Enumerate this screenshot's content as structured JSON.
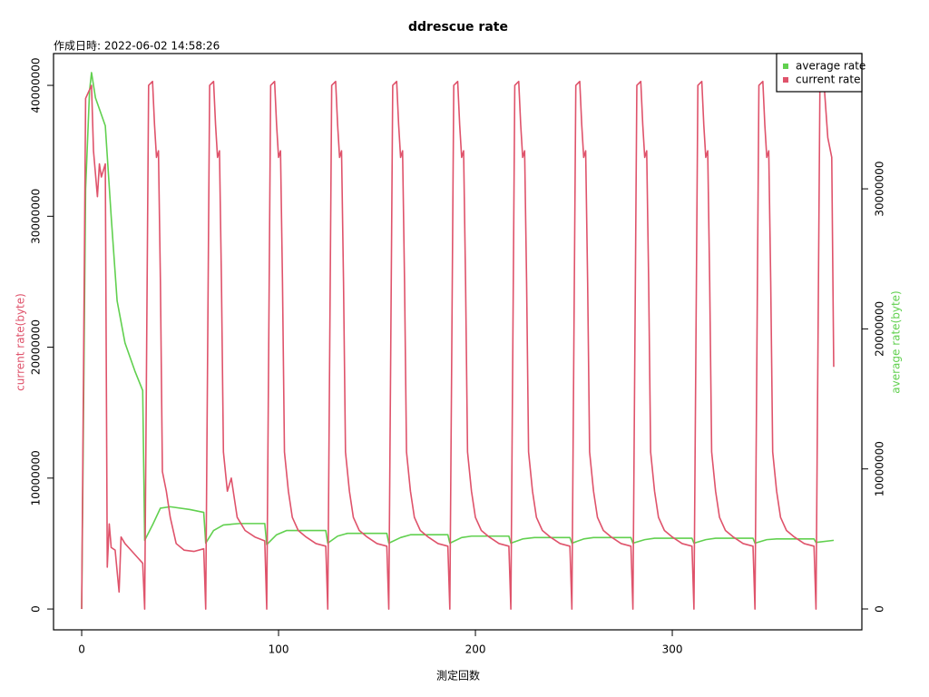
{
  "chart_data": {
    "type": "line",
    "title": "ddrescue rate",
    "subtitle": "作成日時: 2022-06-02 14:58:26",
    "x_label": "測定回数",
    "y_label": "current rate(byte)",
    "y2_label": "average rate(byte)",
    "xlim": [
      -14.3,
      396.3
    ],
    "xticks": [
      0,
      100,
      200,
      300
    ],
    "ylim": [
      -1590000,
      42430000
    ],
    "yticks": [
      0,
      10000000,
      20000000,
      30000000,
      40000000
    ],
    "y2lim": [
      -1490000,
      39660000
    ],
    "y2ticks": [
      0,
      10000000,
      20000000,
      30000000
    ],
    "legend": "top-right",
    "series": [
      {
        "name": "average rate",
        "color": "#61D04F",
        "axis": "y2",
        "x": [
          0,
          2,
          4,
          5,
          7,
          12,
          15,
          18,
          22,
          27,
          31,
          32,
          36,
          40,
          45,
          55,
          62,
          63,
          67,
          72,
          80,
          93,
          94,
          99,
          104,
          124,
          125,
          130,
          135,
          155,
          156,
          162,
          167,
          186,
          187,
          193,
          198,
          217,
          218,
          224,
          230,
          248,
          249,
          255,
          260,
          279,
          280,
          286,
          291,
          310,
          311,
          317,
          322,
          341,
          342,
          348,
          353,
          372,
          373,
          382
        ],
        "values": [
          0,
          30000000,
          37000000,
          38300000,
          36500000,
          34500000,
          28000000,
          22000000,
          19000000,
          17000000,
          15600000,
          4900000,
          6000000,
          7200000,
          7300000,
          7100000,
          6900000,
          4700000,
          5600000,
          6000000,
          6100000,
          6100000,
          4600000,
          5300000,
          5600000,
          5600000,
          4700000,
          5200000,
          5400000,
          5400000,
          4700000,
          5100000,
          5300000,
          5300000,
          4700000,
          5100000,
          5200000,
          5200000,
          4700000,
          5000000,
          5100000,
          5100000,
          4700000,
          5000000,
          5100000,
          5100000,
          4700000,
          4950000,
          5050000,
          5050000,
          4700000,
          4950000,
          5050000,
          5050000,
          4700000,
          4950000,
          5000000,
          5000000,
          4750000,
          4900000
        ]
      },
      {
        "name": "current rate",
        "color": "#DF536B",
        "axis": "y",
        "x": [
          0,
          2,
          5,
          6,
          8,
          9,
          10,
          12,
          13,
          14,
          15,
          17,
          19,
          20,
          22,
          25,
          28,
          31,
          32,
          34,
          36,
          37,
          38,
          39,
          40,
          41,
          43,
          45,
          48,
          52,
          57,
          62,
          63,
          65,
          67,
          68,
          69,
          70,
          71,
          72,
          74,
          76,
          79,
          83,
          88,
          93,
          94,
          96,
          98,
          99,
          100,
          101,
          102,
          103,
          105,
          107,
          110,
          114,
          119,
          124,
          125,
          127,
          129,
          130,
          131,
          132,
          133,
          134,
          136,
          138,
          141,
          145,
          150,
          155,
          156,
          158,
          160,
          161,
          162,
          163,
          164,
          165,
          167,
          169,
          172,
          176,
          181,
          186,
          187,
          189,
          191,
          192,
          193,
          194,
          195,
          196,
          198,
          200,
          203,
          207,
          212,
          217,
          218,
          220,
          222,
          223,
          224,
          225,
          226,
          227,
          229,
          231,
          234,
          238,
          243,
          248,
          249,
          251,
          253,
          254,
          255,
          256,
          257,
          258,
          260,
          262,
          265,
          269,
          274,
          279,
          280,
          282,
          284,
          285,
          286,
          287,
          288,
          289,
          291,
          293,
          296,
          300,
          305,
          310,
          311,
          313,
          315,
          316,
          317,
          318,
          319,
          320,
          322,
          324,
          327,
          331,
          336,
          341,
          342,
          344,
          346,
          347,
          348,
          349,
          350,
          351,
          353,
          355,
          358,
          362,
          367,
          372,
          373,
          375,
          377,
          379,
          381,
          382
        ],
        "values": [
          0,
          39000000,
          40000000,
          35000000,
          31500000,
          34000000,
          33000000,
          34000000,
          3200000,
          6500000,
          4700000,
          4500000,
          1300000,
          5500000,
          5000000,
          4500000,
          4000000,
          3500000,
          0,
          40000000,
          40300000,
          37000000,
          34500000,
          35000000,
          25000000,
          10500000,
          9000000,
          7000000,
          5000000,
          4500000,
          4400000,
          4600000,
          0,
          40000000,
          40300000,
          37000000,
          34500000,
          35000000,
          25000000,
          12000000,
          9000000,
          10000000,
          7000000,
          6000000,
          5500000,
          5200000,
          0,
          40000000,
          40300000,
          37000000,
          34500000,
          35000000,
          25000000,
          12000000,
          9000000,
          7000000,
          6000000,
          5500000,
          5000000,
          4800000,
          0,
          40000000,
          40300000,
          37000000,
          34500000,
          35000000,
          25000000,
          12000000,
          9000000,
          7000000,
          6000000,
          5500000,
          5000000,
          4800000,
          0,
          40000000,
          40300000,
          37000000,
          34500000,
          35000000,
          25000000,
          12000000,
          9000000,
          7000000,
          6000000,
          5500000,
          5000000,
          4800000,
          0,
          40000000,
          40300000,
          37000000,
          34500000,
          35000000,
          25000000,
          12000000,
          9000000,
          7000000,
          6000000,
          5500000,
          5000000,
          4800000,
          0,
          40000000,
          40300000,
          37000000,
          34500000,
          35000000,
          25000000,
          12000000,
          9000000,
          7000000,
          6000000,
          5500000,
          5000000,
          4800000,
          0,
          40000000,
          40300000,
          37000000,
          34500000,
          35000000,
          25000000,
          12000000,
          9000000,
          7000000,
          6000000,
          5500000,
          5000000,
          4800000,
          0,
          40000000,
          40300000,
          37000000,
          34500000,
          35000000,
          25000000,
          12000000,
          9000000,
          7000000,
          6000000,
          5500000,
          5000000,
          4800000,
          0,
          40000000,
          40300000,
          37000000,
          34500000,
          35000000,
          25000000,
          12000000,
          9000000,
          7000000,
          6000000,
          5500000,
          5000000,
          4800000,
          0,
          40000000,
          40300000,
          37000000,
          34500000,
          35000000,
          25000000,
          12000000,
          9000000,
          7000000,
          6000000,
          5500000,
          5000000,
          4800000,
          0,
          40000000,
          40300000,
          36000000,
          34500000,
          18500000
        ]
      }
    ]
  }
}
